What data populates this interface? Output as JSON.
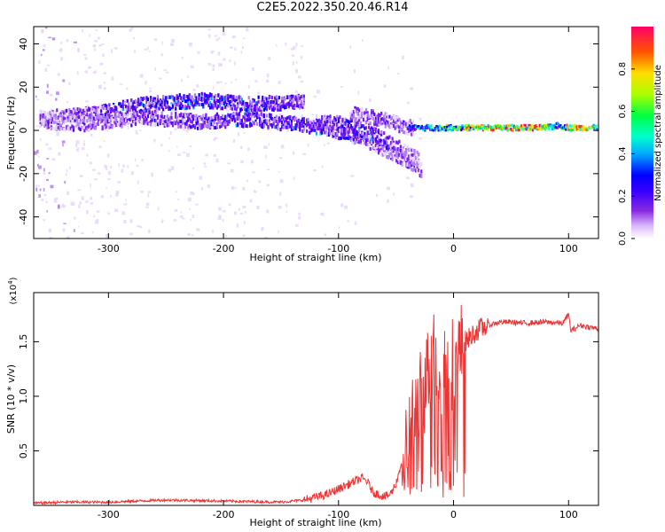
{
  "title": "C2E5.2022.350.20.46.R14",
  "colors": {
    "snr_line": "#ee3333",
    "spectrogram_palette": [
      "#ffffff",
      "#e7d6fb",
      "#b27ef4",
      "#7a1df2",
      "#4a00ff",
      "#0000ff",
      "#00aaff",
      "#00ffdd",
      "#00ff55",
      "#bbff00",
      "#ffcc00",
      "#ff4400",
      "#ff0066"
    ]
  },
  "chart_data": [
    {
      "type": "heatmap",
      "name_key": "spectrogram",
      "xlabel": "Height of straight line (km)",
      "ylabel": "Frequency (Hz)",
      "xlim": [
        -365,
        126
      ],
      "ylim": [
        -50,
        48
      ],
      "xticks": [
        -300,
        -200,
        -100,
        0,
        100
      ],
      "xtick_labels": [
        "-300",
        "-200",
        "-100",
        "0",
        "100"
      ],
      "yticks": [
        -40,
        -20,
        0,
        20,
        40
      ],
      "ytick_labels": [
        "-40",
        "-20",
        "0",
        "20",
        "40"
      ],
      "colorbar": {
        "label": "Normalized spectral amplitude",
        "range": [
          0.0,
          1.0
        ],
        "ticks": [
          0.0,
          0.2,
          0.4,
          0.6,
          0.8
        ],
        "tick_labels": [
          "0.0",
          "0.2",
          "0.4",
          "0.6",
          "0.8"
        ]
      },
      "ridges": [
        {
          "x": [
            -360,
            -320,
            -270,
            -220,
            -180,
            -140,
            -130
          ],
          "freq": [
            6,
            7,
            12,
            14,
            12,
            13,
            13
          ],
          "amplitude": [
            0.25,
            0.35,
            0.45,
            0.5,
            0.45,
            0.4,
            0.35
          ]
        },
        {
          "x": [
            -360,
            -320,
            -270,
            -220,
            -180,
            -140,
            -110,
            -80,
            -60,
            -40,
            -28
          ],
          "freq": [
            4,
            3,
            6,
            4,
            5,
            3,
            1,
            -4,
            -9,
            -14,
            -19
          ],
          "amplitude": [
            0.3,
            0.3,
            0.35,
            0.4,
            0.45,
            0.45,
            0.4,
            0.35,
            0.3,
            0.3,
            0.25
          ]
        },
        {
          "x": [
            -120,
            -100,
            -80,
            -70,
            -55,
            -40,
            -30
          ],
          "freq": [
            4,
            3,
            0,
            -2,
            -6,
            -11,
            -14
          ],
          "amplitude": [
            0.35,
            0.4,
            0.45,
            0.45,
            0.35,
            0.3,
            0.25
          ]
        },
        {
          "x": [
            -90,
            -70,
            -55,
            -45,
            -35
          ],
          "freq": [
            8,
            6,
            4,
            2,
            1
          ],
          "amplitude": [
            0.3,
            0.35,
            0.3,
            0.3,
            0.25
          ]
        },
        {
          "x": [
            -40,
            -20,
            0,
            20,
            40,
            60,
            80,
            90,
            100,
            126
          ],
          "freq": [
            1,
            1,
            1,
            1,
            1,
            1,
            1,
            2,
            1,
            1
          ],
          "amplitude": [
            0.45,
            0.6,
            0.75,
            0.85,
            0.95,
            1.0,
            0.95,
            0.5,
            0.9,
            0.85
          ]
        }
      ]
    },
    {
      "type": "line",
      "name_key": "snr",
      "xlabel": "Height of straight line (km)",
      "ylabel": "SNR (10 * v/v)",
      "yunit_multiplier": "(x10",
      "yunit_exponent": "4",
      "yunit_close": ")",
      "xlim": [
        -365,
        126
      ],
      "ylim": [
        0,
        1.95
      ],
      "xticks": [
        -300,
        -200,
        -100,
        0,
        100
      ],
      "xtick_labels": [
        "-300",
        "-200",
        "-100",
        "0",
        "100"
      ],
      "yticks": [
        0.5,
        1.0,
        1.5
      ],
      "ytick_labels": [
        "0.5",
        "1.0",
        "1.5"
      ],
      "series": [
        {
          "x": [
            -365,
            -340,
            -300,
            -250,
            -200,
            -150,
            -130,
            -110,
            -100,
            -90,
            -80,
            -75,
            -70,
            -60,
            -55,
            -50,
            -45,
            -40,
            -35,
            -30,
            -25,
            -20,
            -18,
            -15,
            -12,
            -10,
            -5,
            0,
            5,
            10,
            15,
            20,
            30,
            40,
            50,
            60,
            80,
            95,
            100,
            102,
            110,
            120,
            126
          ],
          "y": [
            0.02,
            0.03,
            0.03,
            0.05,
            0.04,
            0.03,
            0.05,
            0.1,
            0.15,
            0.2,
            0.25,
            0.22,
            0.12,
            0.08,
            0.1,
            0.2,
            0.4,
            0.6,
            0.8,
            0.95,
            1.1,
            1.3,
            1.45,
            1.35,
            1.2,
            1.25,
            1.35,
            1.3,
            1.4,
            1.5,
            1.55,
            1.6,
            1.65,
            1.68,
            1.68,
            1.67,
            1.68,
            1.67,
            1.75,
            1.6,
            1.65,
            1.63,
            1.62
          ]
        }
      ]
    }
  ]
}
